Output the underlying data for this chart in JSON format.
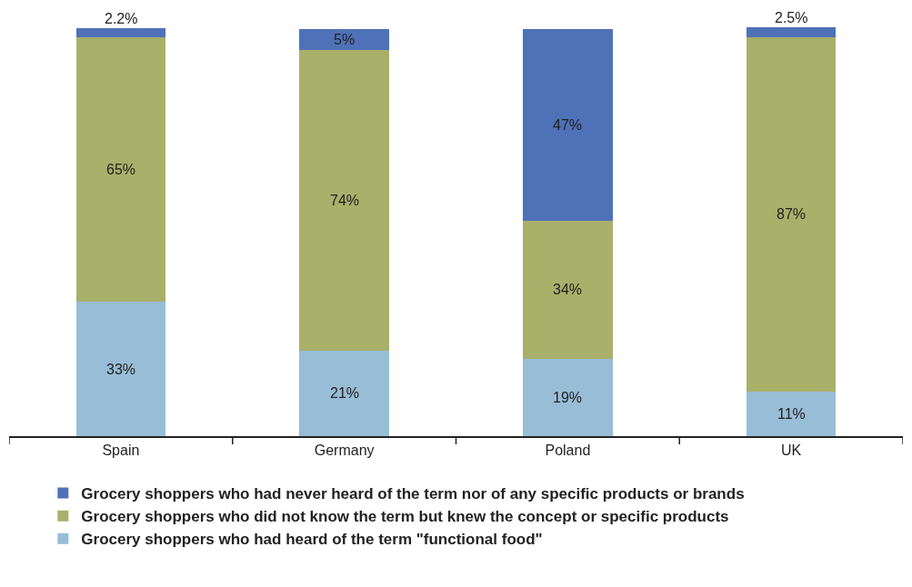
{
  "chart_data": {
    "type": "bar",
    "stacked": true,
    "categories": [
      "Spain",
      "Germany",
      "Poland",
      "UK"
    ],
    "series": [
      {
        "name": "Grocery shoppers who had heard of the term \"functional food\"",
        "color": "#98bdd6",
        "values": [
          33,
          21,
          19,
          11
        ],
        "value_labels": [
          "33%",
          "21%",
          "19%",
          "11%"
        ]
      },
      {
        "name": "Grocery shoppers who did not know the term but knew the concept or specific products",
        "color": "#a9b06a",
        "values": [
          65,
          74,
          34,
          87
        ],
        "value_labels": [
          "65%",
          "74%",
          "34%",
          "87%"
        ]
      },
      {
        "name": "Grocery shoppers who had never heard of the term nor of any specific products or brands",
        "color": "#4f71b8",
        "values": [
          2.2,
          5,
          47,
          2.5
        ],
        "value_labels": [
          "2.2%",
          "5%",
          "47%",
          "2.5%"
        ]
      }
    ],
    "legend": "bottom"
  }
}
